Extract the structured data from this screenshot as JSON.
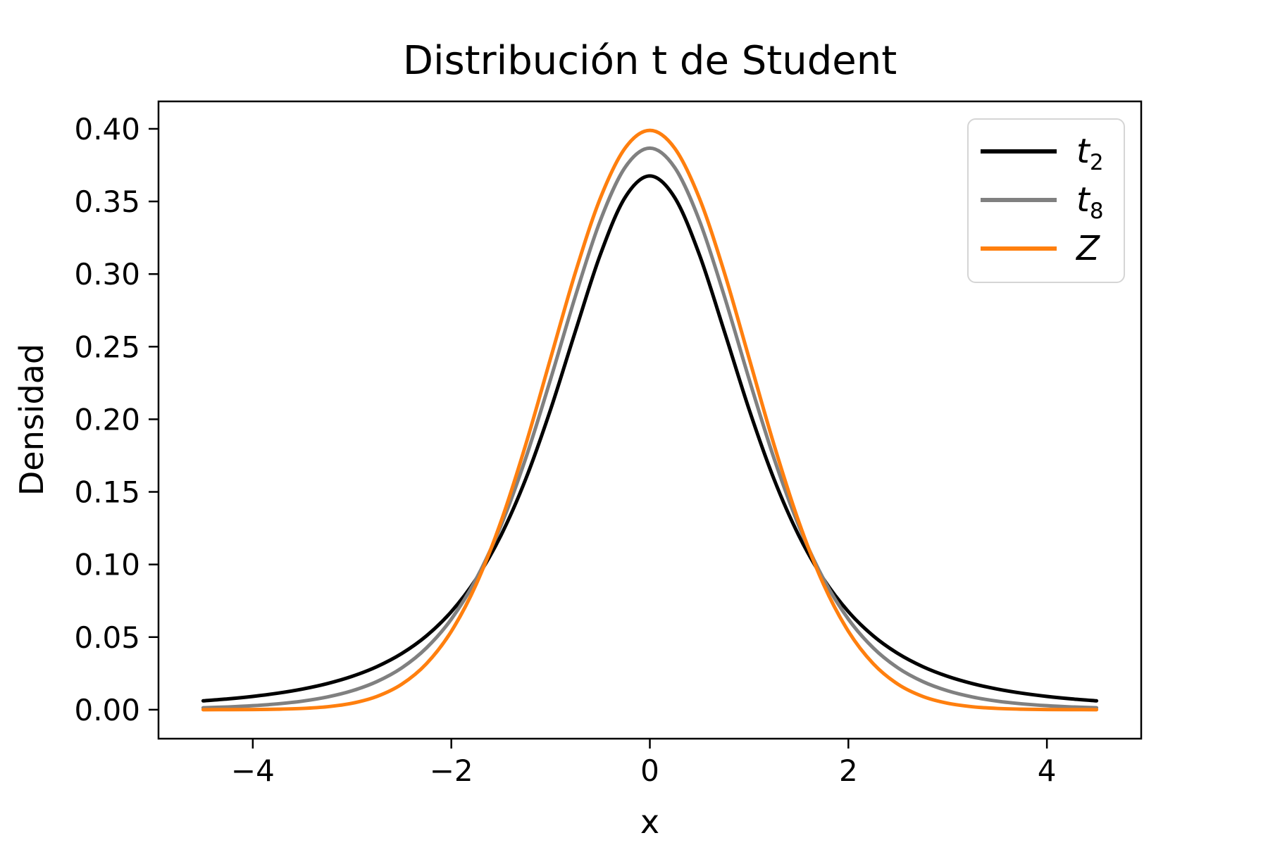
{
  "chart_data": {
    "type": "line",
    "title": "Distribución t de Student",
    "xlabel": "x",
    "ylabel": "Densidad",
    "xlim": [
      -4.95,
      4.95
    ],
    "ylim": [
      -0.019947,
      0.418889
    ],
    "grid": false,
    "legend_position": "upper right",
    "x_ticks": [
      -4,
      -2,
      0,
      2,
      4
    ],
    "x_tick_labels": [
      "−4",
      "−2",
      "0",
      "2",
      "4"
    ],
    "y_ticks": [
      0.0,
      0.05,
      0.1,
      0.15,
      0.2,
      0.25,
      0.3,
      0.35,
      0.4
    ],
    "y_tick_labels": [
      "0.00",
      "0.05",
      "0.10",
      "0.15",
      "0.20",
      "0.25",
      "0.30",
      "0.35",
      "0.40"
    ],
    "x": [
      -4.5,
      -4.25,
      -4.0,
      -3.75,
      -3.5,
      -3.25,
      -3.0,
      -2.75,
      -2.5,
      -2.25,
      -2.0,
      -1.75,
      -1.5,
      -1.25,
      -1.0,
      -0.75,
      -0.5,
      -0.25,
      0.0,
      0.25,
      0.5,
      0.75,
      1.0,
      1.25,
      1.5,
      1.75,
      2.0,
      2.25,
      2.5,
      2.75,
      3.0,
      3.25,
      3.5,
      3.75,
      4.0,
      4.25,
      4.5
    ],
    "series": [
      {
        "name": "t_2",
        "label_main": "t",
        "label_sub": "2",
        "color": "#000000",
        "peak": 0.3676,
        "values": [
          0.00612,
          0.007457,
          0.009163,
          0.011363,
          0.014224,
          0.017984,
          0.022972,
          0.02965,
          0.038662,
          0.050888,
          0.067512,
          0.090004,
          0.120018,
          0.158912,
          0.206749,
          0.260647,
          0.313181,
          0.352704,
          0.367553,
          0.352704,
          0.313181,
          0.260647,
          0.206749,
          0.158912,
          0.120018,
          0.090004,
          0.067512,
          0.050888,
          0.038662,
          0.02965,
          0.022972,
          0.017984,
          0.014224,
          0.011363,
          0.009163,
          0.007457,
          0.00612
        ]
      },
      {
        "name": "t_8",
        "label_main": "t",
        "label_sub": "8",
        "color": "#808080",
        "peak": 0.3867,
        "values": [
          0.001323,
          0.001903,
          0.002756,
          0.004022,
          0.005913,
          0.008761,
          0.01301,
          0.01936,
          0.028756,
          0.042571,
          0.062363,
          0.089962,
          0.126775,
          0.17325,
          0.227611,
          0.284822,
          0.336695,
          0.373391,
          0.386699,
          0.373391,
          0.336695,
          0.284822,
          0.227611,
          0.17325,
          0.126775,
          0.089962,
          0.062363,
          0.042571,
          0.028756,
          0.01936,
          0.01301,
          0.008761,
          0.005913,
          0.004022,
          0.002756,
          0.001903,
          0.001323
        ]
      },
      {
        "name": "Z",
        "label_main": "Z",
        "label_sub": "",
        "color": "#ff7f0e",
        "peak": 0.3989,
        "values": [
          1.6e-05,
          4.8e-05,
          0.000134,
          0.000353,
          0.000873,
          0.002029,
          0.004432,
          0.009105,
          0.017528,
          0.03174,
          0.053991,
          0.086277,
          0.129518,
          0.182649,
          0.241971,
          0.301137,
          0.352065,
          0.386668,
          0.398942,
          0.386668,
          0.352065,
          0.301137,
          0.241971,
          0.182649,
          0.129518,
          0.086277,
          0.053991,
          0.03174,
          0.017528,
          0.009105,
          0.004432,
          0.002029,
          0.000873,
          0.000353,
          0.000134,
          4.8e-05,
          1.6e-05
        ]
      }
    ]
  }
}
